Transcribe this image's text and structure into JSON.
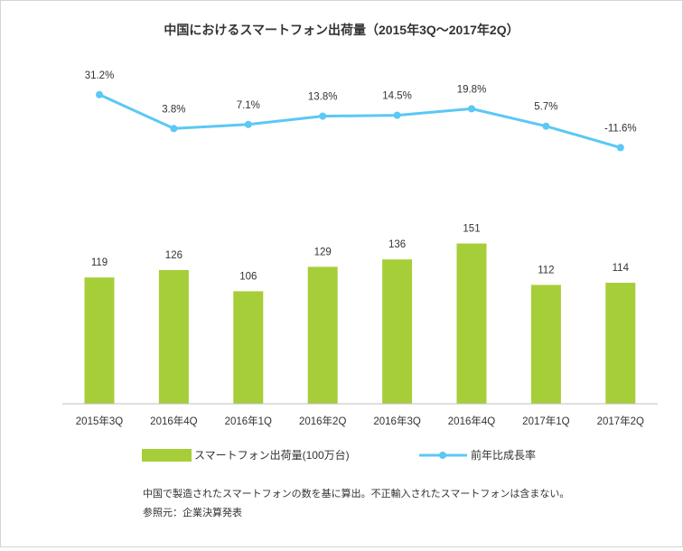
{
  "chart_data": {
    "type": "bar",
    "title": "中国におけるスマートフォン出荷量（2015年3Q～2017年2Q）",
    "categories": [
      "2015年3Q",
      "2016年4Q",
      "2016年1Q",
      "2016年2Q",
      "2016年3Q",
      "2016年4Q",
      "2017年1Q",
      "2017年2Q"
    ],
    "series": [
      {
        "name": "スマートフォン出荷量(100万台)",
        "type": "bar",
        "color": "#a6ce39",
        "values": [
          119,
          126,
          106,
          129,
          136,
          151,
          112,
          114
        ],
        "labels": [
          "119",
          "126",
          "106",
          "129",
          "136",
          "151",
          "112",
          "114"
        ]
      },
      {
        "name": "前年比成長率",
        "type": "line",
        "color": "#5bc8f5",
        "values": [
          31.2,
          3.8,
          7.1,
          13.8,
          14.5,
          19.8,
          5.7,
          -11.6
        ],
        "labels": [
          "31.2%",
          "3.8%",
          "7.1%",
          "13.8%",
          "14.5%",
          "19.8%",
          "5.7%",
          "-11.6%"
        ]
      }
    ],
    "grid": false,
    "legend_position": "bottom",
    "notes": [
      "中国で製造されたスマートフォンの数を基に算出。不正輸入されたスマートフォンは含まない。",
      "参照元：企業決算発表"
    ],
    "colors": {
      "bar": "#a6ce39",
      "line": "#5bc8f5",
      "axis": "#bfbfbf",
      "text": "#333333"
    }
  }
}
